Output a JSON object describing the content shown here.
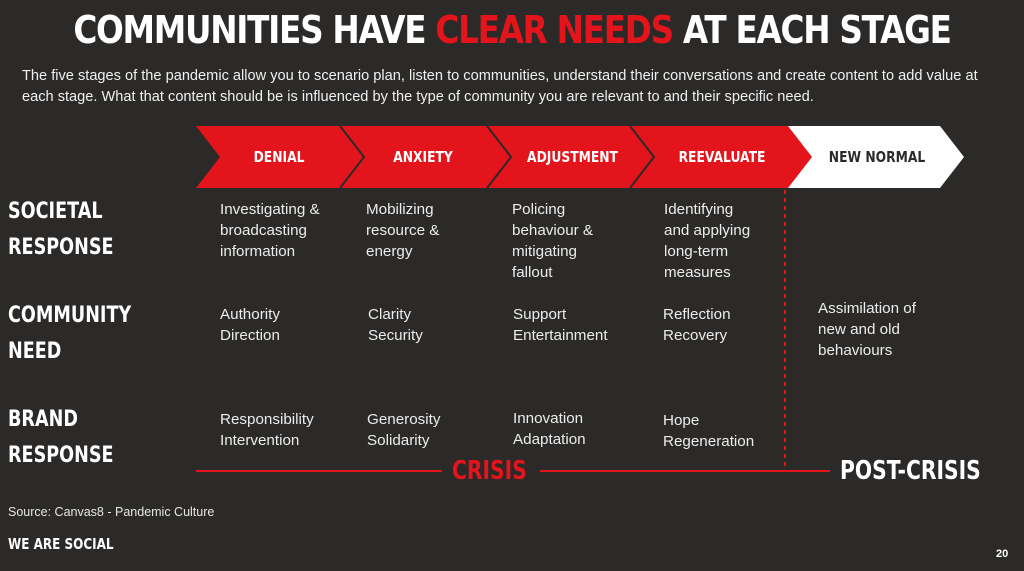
{
  "title": {
    "pre": "COMMUNITIES HAVE ",
    "accent": "CLEAR NEEDS",
    "post": " AT EACH STAGE"
  },
  "intro": "The five stages of the pandemic allow you to scenario plan, listen to communities, understand their conversations and create content to add value at each stage. What that content should be is influenced by the type of community you are relevant to and their specific need.",
  "colors": {
    "accent": "#e3141b",
    "background": "#2b2a28",
    "text": "#ffffff"
  },
  "stages": [
    {
      "label": "DENIAL",
      "color": "#e3141b"
    },
    {
      "label": "ANXIETY",
      "color": "#e3141b"
    },
    {
      "label": "ADJUSTMENT",
      "color": "#e3141b"
    },
    {
      "label": "REEVALUATE",
      "color": "#e3141b"
    },
    {
      "label": "NEW NORMAL",
      "color": "#ffffff"
    }
  ],
  "rows": {
    "societal": {
      "label": "SOCIETAL\nRESPONSE",
      "cells": [
        "Investigating &\nbroadcasting\ninformation",
        "Mobilizing\nresource &\nenergy",
        "Policing\nbehaviour &\nmitigating\nfallout",
        "Identifying\nand applying\nlong-term\nmeasures"
      ]
    },
    "community": {
      "label": "COMMUNITY\nNEED",
      "cells": [
        "Authority\nDirection",
        "Clarity\nSecurity",
        "Support\nEntertainment",
        "Reflection\nRecovery",
        "Assimilation of\nnew and old\nbehaviours"
      ]
    },
    "brand": {
      "label": "BRAND\nRESPONSE",
      "cells": [
        "Responsibility\nIntervention",
        "Generosity\nSolidarity",
        "Innovation\nAdaptation",
        "Hope\nRegeneration"
      ]
    }
  },
  "phases": {
    "crisis": "CRISIS",
    "post_crisis": "POST-CRISIS"
  },
  "source": "Source: Canvas8 - Pandemic Culture",
  "brand": "WE ARE SOCIAL",
  "page_number": "20"
}
